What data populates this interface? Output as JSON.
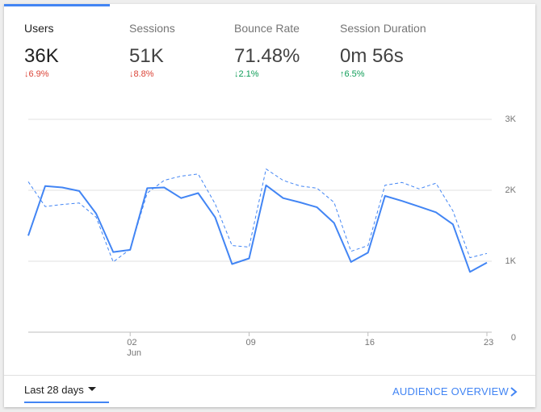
{
  "metrics": [
    {
      "name": "Users",
      "value": "36K",
      "delta": "6.9%",
      "direction": "down"
    },
    {
      "name": "Sessions",
      "value": "51K",
      "delta": "8.8%",
      "direction": "down"
    },
    {
      "name": "Bounce Rate",
      "value": "71.48%",
      "delta": "2.1%",
      "direction": "down"
    },
    {
      "name": "Session Duration",
      "value": "0m 56s",
      "delta": "6.5%",
      "direction": "up"
    }
  ],
  "colors": {
    "accent": "#4285f4",
    "down": "#db4437",
    "up": "#0f9d58"
  },
  "footer": {
    "date_range": "Last 28 days",
    "link": "AUDIENCE OVERVIEW"
  },
  "chart_data": {
    "type": "line",
    "ylim": [
      0,
      3000
    ],
    "y_ticks": [
      "0",
      "1K",
      "2K",
      "3K"
    ],
    "x_ticks": [
      {
        "label": "02",
        "sublabel": "Jun",
        "index": 6
      },
      {
        "label": "09",
        "sublabel": "",
        "index": 13
      },
      {
        "label": "16",
        "sublabel": "",
        "index": 20
      },
      {
        "label": "23",
        "sublabel": "",
        "index": 27
      }
    ],
    "grid": true,
    "series": [
      {
        "style": "solid",
        "values": [
          1360,
          2060,
          2040,
          1990,
          1670,
          1130,
          1160,
          2030,
          2040,
          1890,
          1960,
          1620,
          960,
          1040,
          2070,
          1890,
          1830,
          1760,
          1540,
          990,
          1120,
          1920,
          1850,
          1770,
          1690,
          1520,
          850,
          980
        ]
      },
      {
        "style": "dashed",
        "values": [
          2120,
          1770,
          1800,
          1820,
          1620,
          990,
          1170,
          1960,
          2140,
          2200,
          2230,
          1810,
          1220,
          1200,
          2300,
          2140,
          2060,
          2030,
          1830,
          1140,
          1220,
          2070,
          2110,
          2020,
          2100,
          1710,
          1050,
          1110
        ]
      }
    ]
  }
}
